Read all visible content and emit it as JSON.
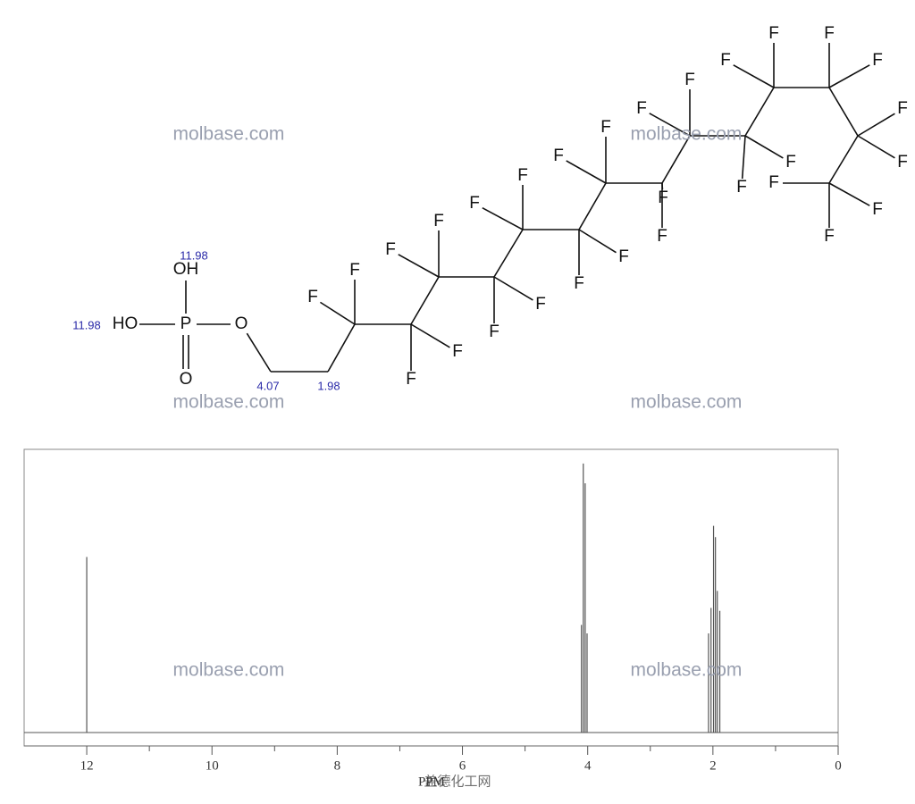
{
  "chart_data": {
    "type": "spectrum",
    "x_label": "PPM",
    "xlim": [
      13,
      0
    ],
    "xticks": [
      12,
      10,
      8,
      6,
      4,
      2,
      0
    ],
    "xminorticks": [
      11,
      9,
      7,
      5,
      3,
      1
    ],
    "ylim": [
      0,
      1
    ],
    "color": "#555555",
    "x": [
      12.0,
      4.1,
      4.07,
      4.04,
      4.01,
      2.07,
      2.03,
      1.99,
      1.96,
      1.93,
      1.89
    ],
    "values": [
      0.62,
      0.38,
      0.95,
      0.88,
      0.35,
      0.35,
      0.44,
      0.73,
      0.69,
      0.5,
      0.43
    ]
  },
  "structure": {
    "atoms": [
      "HO",
      "P",
      "OH",
      "O",
      "O",
      "F",
      "F",
      "F",
      "F",
      "F",
      "F",
      "F",
      "F",
      "F",
      "F",
      "F",
      "F",
      "F",
      "F",
      "F",
      "F",
      "F",
      "F",
      "F",
      "F",
      "F",
      "F",
      "F",
      "F",
      "F",
      "F",
      "F",
      "F",
      "F"
    ],
    "shifts": [
      "11.98",
      "11.98",
      "4.07",
      "1.98"
    ]
  },
  "watermarks": [
    "molbase.com",
    "molbase.com",
    "molbase.com",
    "molbase.com",
    "molbase.com",
    "molbase.com",
    "盖德化工网"
  ]
}
